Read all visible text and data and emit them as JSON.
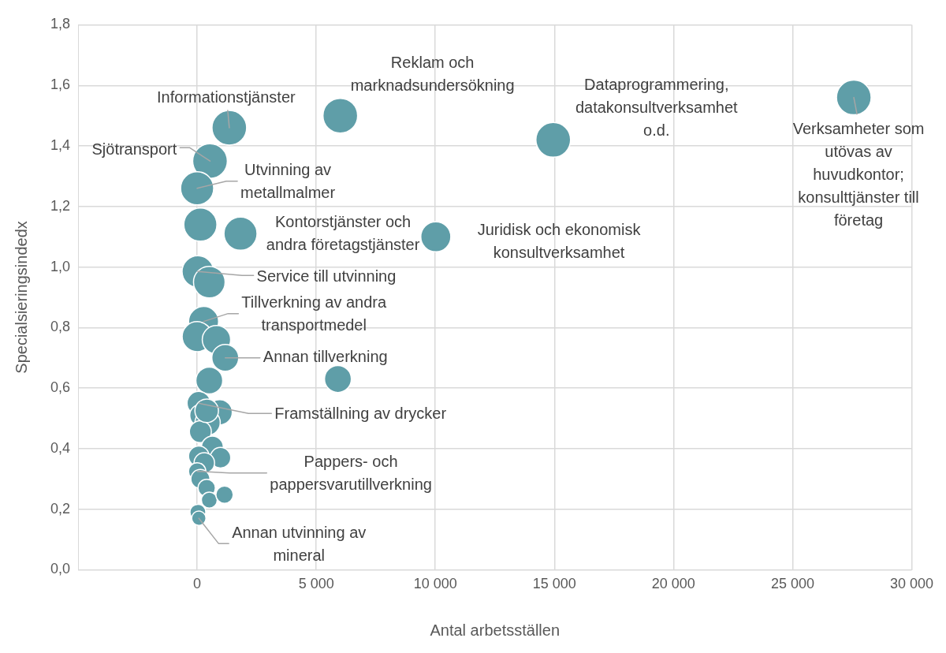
{
  "chart_data": {
    "type": "bubble",
    "xlabel": "Antal arbetsställen",
    "ylabel": "Specialsieringsindedx",
    "xlim": [
      -5000,
      30000
    ],
    "xticks": [
      {
        "value": 0,
        "label": "0"
      },
      {
        "value": 5000,
        "label": "5 000"
      },
      {
        "value": 10000,
        "label": "10 000"
      },
      {
        "value": 15000,
        "label": "15 000"
      },
      {
        "value": 20000,
        "label": "20 000"
      },
      {
        "value": 25000,
        "label": "25 000"
      },
      {
        "value": 30000,
        "label": "30 000"
      }
    ],
    "ylim": [
      0,
      1.8
    ],
    "yticks": [
      {
        "value": 0,
        "label": "0,0"
      },
      {
        "value": 0.2,
        "label": "0,2"
      },
      {
        "value": 0.4,
        "label": "0,4"
      },
      {
        "value": 0.6,
        "label": "0,6"
      },
      {
        "value": 0.8,
        "label": "0,8"
      },
      {
        "value": 1,
        "label": "1,0"
      },
      {
        "value": 1.2,
        "label": "1,2"
      },
      {
        "value": 1.4,
        "label": "1,4"
      },
      {
        "value": 1.6,
        "label": "1,6"
      },
      {
        "value": 1.8,
        "label": "1,8"
      }
    ],
    "grid": true,
    "legend": false,
    "series": [
      {
        "color": "#5f9ea8",
        "x": [
          27570,
          14950,
          6010,
          1350,
          540,
          0,
          135,
          1820,
          10020,
          30,
          510,
          270,
          0,
          810,
          1180,
          510,
          5910,
          70,
          945,
          150,
          440,
          135,
          640,
          70,
          980,
          300,
          0,
          135,
          400,
          510,
          1150,
          30,
          70,
          400
        ],
        "values": [
          1.56,
          1.42,
          1.5,
          1.46,
          1.35,
          1.26,
          1.14,
          1.11,
          1.1,
          0.985,
          0.95,
          0.82,
          0.77,
          0.76,
          0.7,
          0.625,
          0.63,
          0.55,
          0.52,
          0.51,
          0.486,
          0.456,
          0.405,
          0.375,
          0.37,
          0.353,
          0.325,
          0.3,
          0.27,
          0.23,
          0.248,
          0.19,
          0.17,
          0.525
        ],
        "sizes": [
          1,
          1,
          1,
          1,
          1,
          0.91,
          0.91,
          0.91,
          0.75,
          0.83,
          0.83,
          0.75,
          0.75,
          0.67,
          0.6,
          0.6,
          0.6,
          0.46,
          0.53,
          0.4,
          0.53,
          0.4,
          0.4,
          0.35,
          0.35,
          0.35,
          0.25,
          0.3,
          0.25,
          0.21,
          0.25,
          0.21,
          0.17,
          0.46
        ]
      }
    ],
    "annotations": [
      {
        "text": "Verksamheter som utövas av huvudkontor; konsulttjänster till företag",
        "x": 27570,
        "y": 1.56
      },
      {
        "text": "Dataprogrammering, datakonsultverksamhet o.d.",
        "x": 14950,
        "y": 1.42
      },
      {
        "text": "Reklam och marknadsundersökning",
        "x": 6010,
        "y": 1.5
      },
      {
        "text": "Informationstjänster",
        "x": 1350,
        "y": 1.46
      },
      {
        "text": "Sjötransport",
        "x": 540,
        "y": 1.35
      },
      {
        "text": "Utvinning av metallmalmer",
        "x": 0,
        "y": 1.26
      },
      {
        "text": "Kontorstjänster och andra företagstjänster",
        "x": 1820,
        "y": 1.11
      },
      "Juridisk och ekonomisk konsultverksamhet",
      {
        "text": "Service till utvinning",
        "x": 30,
        "y": 0.985
      },
      {
        "text": "Tillverkning av andra transportmedel",
        "x": 270,
        "y": 0.82
      },
      {
        "text": "Annan tillverkning",
        "x": 1180,
        "y": 0.7
      },
      {
        "text": "Framställning av drycker",
        "x": 70,
        "y": 0.55
      },
      {
        "text": "Pappers- och pappersvarutillverkning",
        "x": 0,
        "y": 0.325
      },
      {
        "text": "Annan utvinning av mineral",
        "x": 70,
        "y": 0.17
      }
    ]
  }
}
